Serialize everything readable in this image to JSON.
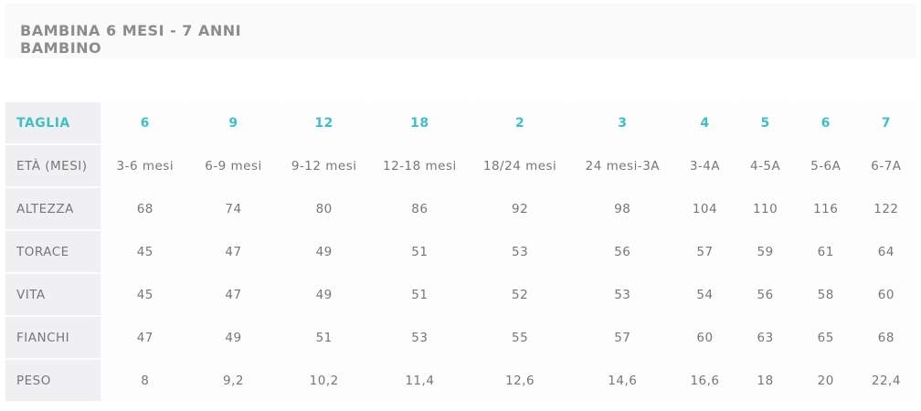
{
  "header": {
    "title": "BAMBINA 6 MESI - 7 ANNI",
    "subtitle": "BAMBINO"
  },
  "table": {
    "header": [
      "TAGLIA",
      "6",
      "9",
      "12",
      "18",
      "2",
      "3",
      "4",
      "5",
      "6",
      "7"
    ],
    "rows": [
      [
        "ETÀ (MESI)",
        "3-6 mesi",
        "6-9 mesi",
        "9-12 mesi",
        "12-18 mesi",
        "18/24 mesi",
        "24 mesi-3A",
        "3-4A",
        "4-5A",
        "5-6A",
        "6-7A"
      ],
      [
        "ALTEZZA",
        "68",
        "74",
        "80",
        "86",
        "92",
        "98",
        "104",
        "110",
        "116",
        "122"
      ],
      [
        "TORACE",
        "45",
        "47",
        "49",
        "51",
        "53",
        "56",
        "57",
        "59",
        "61",
        "64"
      ],
      [
        "VITA",
        "45",
        "47",
        "49",
        "51",
        "52",
        "53",
        "54",
        "56",
        "58",
        "60"
      ],
      [
        "FIANCHI",
        "47",
        "49",
        "51",
        "53",
        "55",
        "57",
        "60",
        "63",
        "65",
        "68"
      ],
      [
        "PESO",
        "8",
        "9,2",
        "10,2",
        "11,4",
        "12,6",
        "14,6",
        "16,6",
        "18",
        "20",
        "22,4"
      ]
    ]
  }
}
